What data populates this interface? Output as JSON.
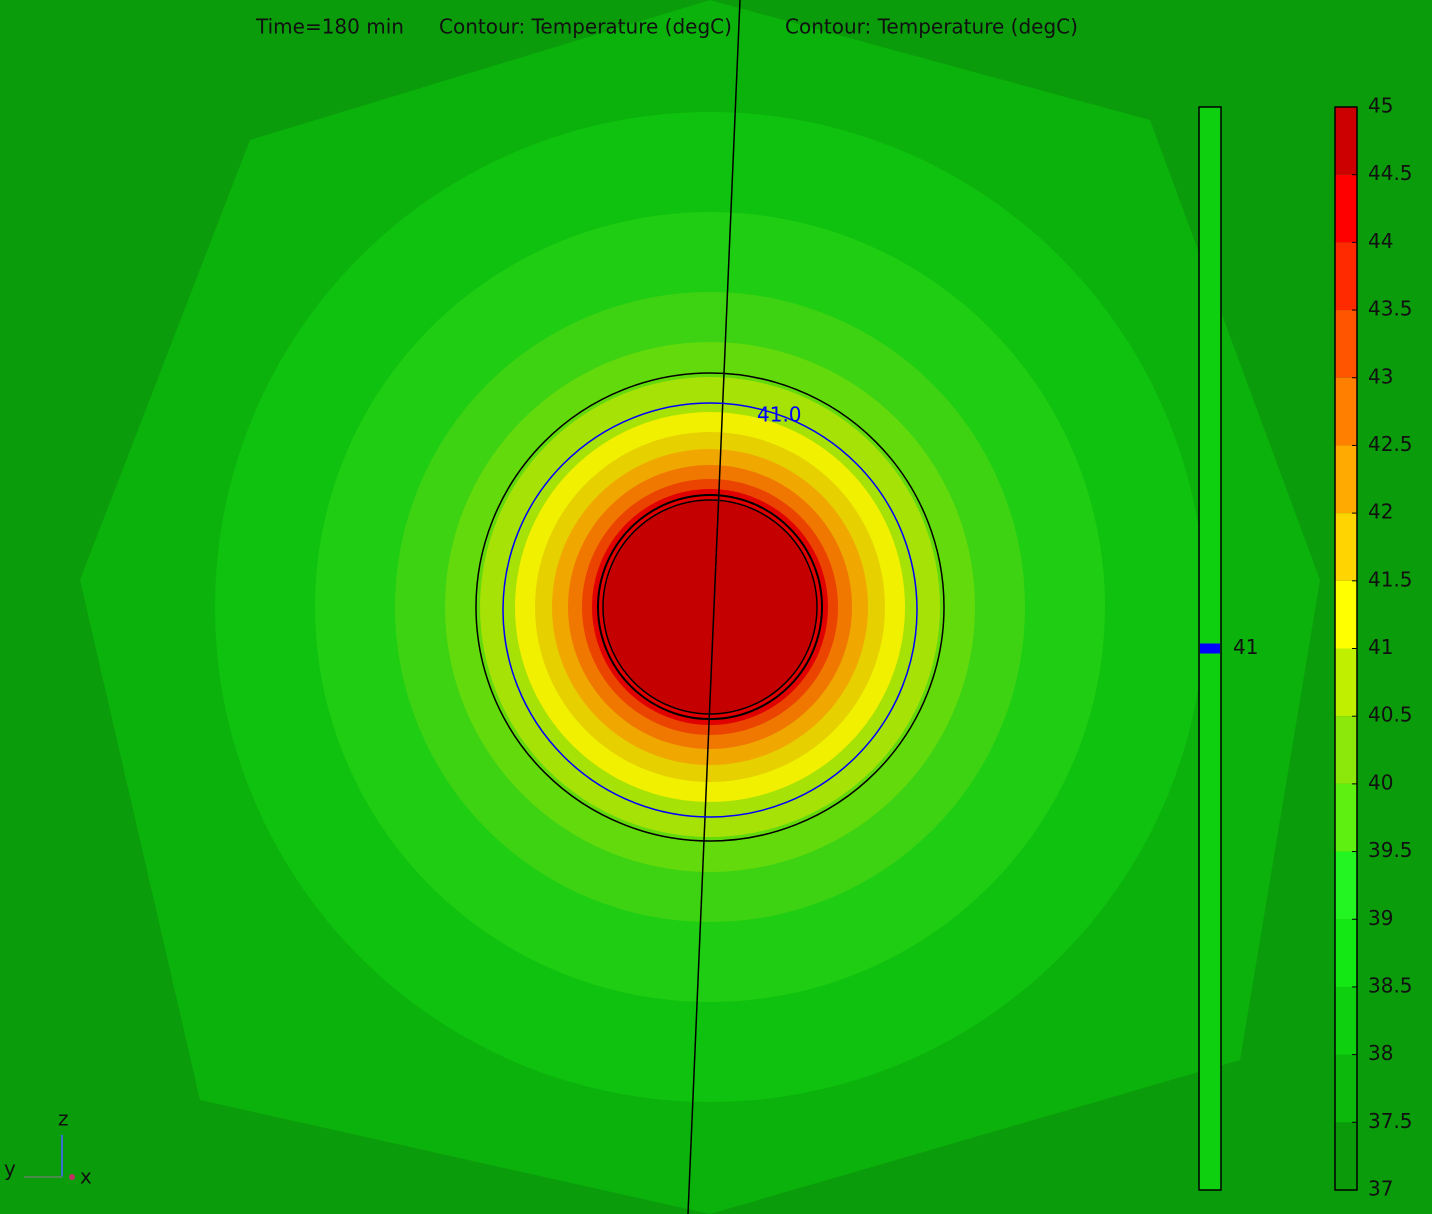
{
  "chart_data": {
    "type": "contour",
    "title": "Time=180 min",
    "subtitles": [
      "Contour: Temperature (degC)",
      "Contour: Temperature (degC)"
    ],
    "colorbar": {
      "range": [
        37,
        45
      ],
      "ticks": [
        37,
        37.5,
        38,
        38.5,
        39,
        39.5,
        40,
        40.5,
        41,
        41.5,
        42,
        42.5,
        43,
        43.5,
        44,
        44.5,
        45
      ],
      "colors": [
        "#0a9a0a",
        "#0cb80c",
        "#0fd00f",
        "#14e814",
        "#22f522",
        "#5ef010",
        "#8ce80a",
        "#c0f000",
        "#ffff00",
        "#ffd400",
        "#ffaa00",
        "#ff8000",
        "#ff5400",
        "#ff2a00",
        "#ff0000",
        "#cc0000"
      ]
    },
    "contour": {
      "levels": [
        {
          "value": 41,
          "label": "41.0"
        }
      ],
      "color": "#0000ff"
    },
    "axes_labels": {
      "z": "z",
      "y": "y",
      "x": "x"
    }
  }
}
